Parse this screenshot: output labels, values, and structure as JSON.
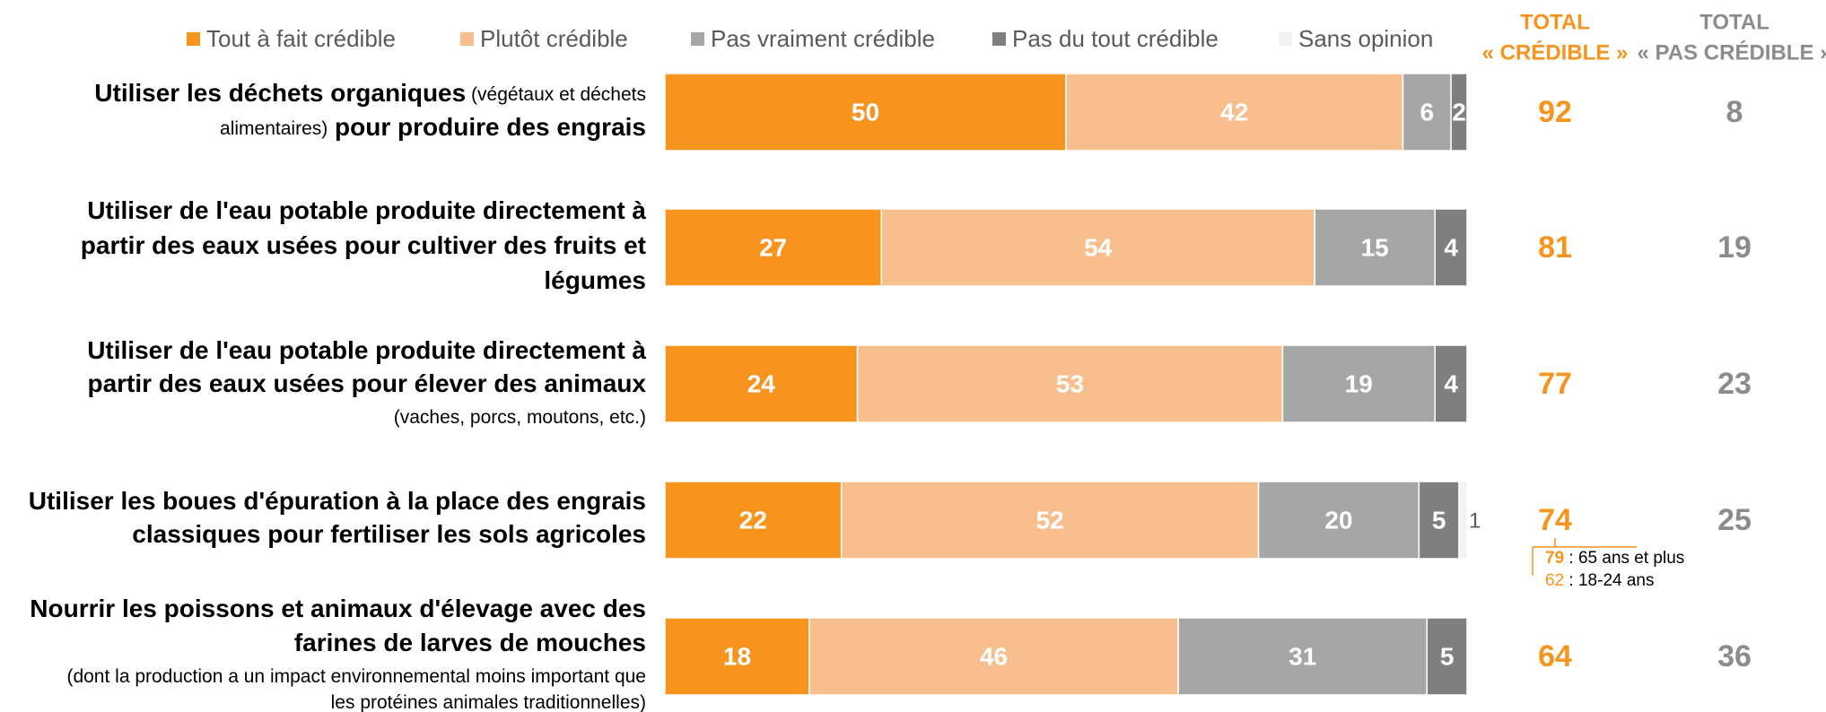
{
  "chart_data": {
    "type": "stacked-bar-horizontal",
    "xlim": [
      0,
      100
    ],
    "categories": [
      [
        [
          {
            "text": "Utiliser les déchets organiques",
            "bold": true
          },
          {
            "text": " (végétaux et déchets",
            "bold": false
          }
        ],
        [
          {
            "text": "alimentaires)",
            "bold": false
          },
          {
            "text": " pour produire des engrais",
            "bold": true
          }
        ]
      ],
      [
        [
          {
            "text": "Utiliser de l'eau potable produite directement à",
            "bold": true
          }
        ],
        [
          {
            "text": "partir des eaux usées pour cultiver des fruits et",
            "bold": true
          }
        ],
        [
          {
            "text": "légumes",
            "bold": true
          }
        ]
      ],
      [
        [
          {
            "text": "Utiliser de l'eau potable produite directement à",
            "bold": true
          }
        ],
        [
          {
            "text": "partir des eaux usées pour élever des animaux",
            "bold": true
          }
        ],
        [
          {
            "text": "(vaches, porcs, moutons, etc.)",
            "bold": false
          }
        ]
      ],
      [
        [
          {
            "text": "Utiliser les boues d'épuration à la place des engrais",
            "bold": true
          }
        ],
        [
          {
            "text": "classiques pour fertiliser les sols agricoles",
            "bold": true
          }
        ]
      ],
      [
        [
          {
            "text": "Nourrir les poissons et animaux d'élevage avec des",
            "bold": true
          }
        ],
        [
          {
            "text": "farines de larves de mouches",
            "bold": true
          }
        ],
        [
          {
            "text": "(dont la production a un impact environnemental moins important que",
            "bold": false
          }
        ],
        [
          {
            "text": "les protéines animales traditionnelles)",
            "bold": false
          }
        ]
      ]
    ],
    "series": [
      {
        "name": "Tout à fait crédible",
        "color": "#F7941D",
        "label_color": "#ffffff",
        "values": [
          50,
          27,
          24,
          22,
          18
        ]
      },
      {
        "name": "Plutôt crédible",
        "color": "#F9BE8E",
        "label_color": "#ffffff",
        "values": [
          42,
          54,
          53,
          52,
          46
        ]
      },
      {
        "name": "Pas vraiment crédible",
        "color": "#A6A6A6",
        "label_color": "#ffffff",
        "values": [
          6,
          15,
          19,
          20,
          31
        ]
      },
      {
        "name": "Pas du tout crédible",
        "color": "#7F7F7F",
        "label_color": "#ffffff",
        "values": [
          2,
          4,
          4,
          5,
          5
        ]
      },
      {
        "name": "Sans opinion",
        "color": "#F2F2F2",
        "label_color": "#595959",
        "label_outside": true,
        "values": [
          0,
          0,
          0,
          1,
          0
        ]
      }
    ],
    "totals": [
      {
        "header": [
          "TOTAL",
          "« CRÉDIBLE »"
        ],
        "color": "#F7941D",
        "values": [
          92,
          81,
          77,
          74,
          64
        ]
      },
      {
        "header": [
          "TOTAL",
          "« PAS CRÉDIBLE »"
        ],
        "color": "#8C8C8C",
        "values": [
          8,
          19,
          23,
          25,
          36
        ]
      }
    ],
    "annotation": {
      "row": 3,
      "items": [
        {
          "value": 79,
          "text": " : 65 ans et plus"
        },
        {
          "value": 62,
          "text": " : 18-24 ans"
        }
      ]
    }
  }
}
